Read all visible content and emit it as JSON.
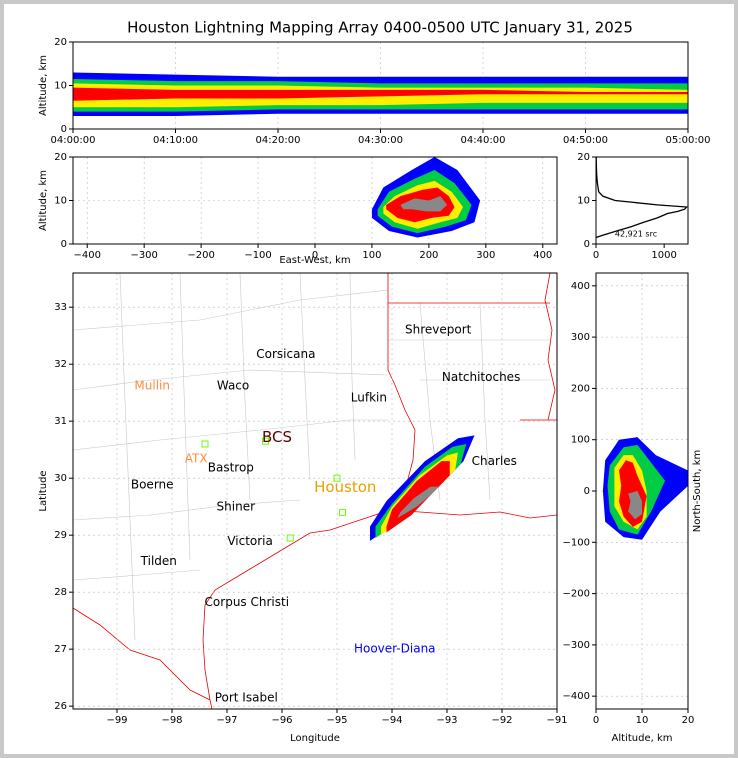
{
  "title": "Houston Lightning Mapping Array 0400-0500 UTC January 31, 2025",
  "chart_data": [
    {
      "type": "band",
      "ylabel": "Altitude, km",
      "xlim": [
        0,
        60
      ],
      "ylim": [
        0,
        20
      ],
      "grid": true,
      "xticks": [
        {
          "value": 0,
          "label": "04:00:00"
        },
        {
          "value": 10,
          "label": "04:10:00"
        },
        {
          "value": 20,
          "label": "04:20:00"
        },
        {
          "value": 30,
          "label": "04:30:00"
        },
        {
          "value": 40,
          "label": "04:40:00"
        },
        {
          "value": 50,
          "label": "04:50:00"
        },
        {
          "value": 60,
          "label": "05:00:00"
        }
      ],
      "yticks": [
        0,
        10,
        20
      ],
      "x": [
        0,
        10,
        20,
        30,
        40,
        50,
        60
      ],
      "series": [
        {
          "color": "#0000ff",
          "low": [
            3,
            3,
            3.5,
            3.5,
            3.5,
            3.5,
            3.5
          ],
          "high": [
            13,
            12.5,
            12,
            12,
            12,
            12,
            12
          ]
        },
        {
          "color": "#00cc44",
          "low": [
            4,
            4,
            4.5,
            4.5,
            4.5,
            4.5,
            4.5
          ],
          "high": [
            11.5,
            11,
            11,
            10.5,
            10.5,
            10.5,
            10.5
          ]
        },
        {
          "color": "#ffee00",
          "low": [
            5,
            5,
            5.5,
            5.5,
            6,
            6,
            6
          ],
          "high": [
            10.5,
            10,
            10,
            9.5,
            9.5,
            9.5,
            9
          ]
        },
        {
          "color": "#ff0000",
          "low": [
            6.5,
            7,
            7,
            7.5,
            8,
            8,
            8
          ],
          "high": [
            9.5,
            9,
            9,
            9,
            9,
            8.5,
            8.5
          ]
        }
      ]
    },
    {
      "type": "polygon",
      "xlabel": "East-West, km",
      "ylabel": "Altitude, km",
      "xlim": [
        -425,
        425
      ],
      "ylim": [
        0,
        20
      ],
      "grid": true,
      "xticks": [
        {
          "value": -400,
          "label": "−400"
        },
        {
          "value": -300,
          "label": "−300"
        },
        {
          "value": -200,
          "label": "−200"
        },
        {
          "value": -100,
          "label": "−100"
        },
        0,
        100,
        200,
        300,
        400
      ],
      "yticks": [
        0,
        10,
        20
      ],
      "series": [
        {
          "color": "#0000ff",
          "x": [
            100,
            120,
            170,
            210,
            250,
            290,
            280,
            240,
            180,
            130,
            100
          ],
          "y": [
            8,
            13,
            17,
            20,
            17,
            10,
            5,
            3,
            1.5,
            3,
            6
          ]
        },
        {
          "color": "#00cc44",
          "x": [
            110,
            130,
            175,
            210,
            245,
            275,
            265,
            230,
            180,
            135,
            110
          ],
          "y": [
            8,
            12,
            15,
            17,
            14,
            9,
            5.5,
            4,
            2.5,
            4,
            6.5
          ]
        },
        {
          "color": "#ffee00",
          "x": [
            120,
            140,
            180,
            210,
            240,
            260,
            250,
            220,
            180,
            140,
            120
          ],
          "y": [
            8.5,
            11,
            13.5,
            14.5,
            12,
            8.5,
            6,
            5,
            3.5,
            5,
            7
          ]
        },
        {
          "color": "#ff0000",
          "x": [
            125,
            150,
            190,
            215,
            235,
            245,
            235,
            205,
            175,
            145,
            125
          ],
          "y": [
            9,
            11,
            12.5,
            13,
            11,
            8.5,
            6.5,
            6,
            5,
            6,
            8
          ]
        },
        {
          "color": "#888888",
          "x": [
            150,
            175,
            200,
            220,
            232,
            220,
            195,
            170,
            155
          ],
          "y": [
            9,
            10.5,
            10,
            11,
            9,
            7.5,
            7.5,
            8,
            8
          ]
        }
      ]
    },
    {
      "type": "line",
      "xlim": [
        0,
        1350
      ],
      "ylim": [
        0,
        20
      ],
      "grid": false,
      "xticks": [
        0,
        1000
      ],
      "yticks": [
        0,
        10,
        20
      ],
      "annotation": "42,921 src",
      "color": "#000000",
      "x": [
        0,
        100,
        300,
        520,
        700,
        900,
        1050,
        1200,
        1300,
        1330,
        900,
        280,
        100,
        40,
        20,
        10,
        5,
        3
      ],
      "y": [
        1.5,
        2,
        3,
        4,
        5,
        6,
        7,
        7.5,
        8,
        8.5,
        9,
        10,
        11,
        12,
        14,
        16,
        18,
        20
      ]
    },
    {
      "type": "polygon",
      "xlabel": "Longitude",
      "ylabel": "Latitude",
      "xlim": [
        -99.8,
        -91
      ],
      "ylim": [
        25.95,
        33.6
      ],
      "grid": true,
      "xticks": [
        {
          "value": -99,
          "label": "−99"
        },
        {
          "value": -98,
          "label": "−98"
        },
        {
          "value": -97,
          "label": "−97"
        },
        {
          "value": -96,
          "label": "−96"
        },
        {
          "value": -95,
          "label": "−95"
        },
        {
          "value": -94,
          "label": "−94"
        },
        {
          "value": -93,
          "label": "−93"
        },
        {
          "value": -92,
          "label": "−92"
        },
        {
          "value": -91,
          "label": "−91"
        }
      ],
      "yticks": [
        26,
        27,
        28,
        29,
        30,
        31,
        32,
        33
      ],
      "series": [
        {
          "color": "#0000ff",
          "x": [
            -94.4,
            -93.8,
            -93.2,
            -92.7,
            -92.5,
            -92.8,
            -93.4,
            -94.1,
            -94.4
          ],
          "y": [
            28.9,
            29.3,
            29.8,
            30.3,
            30.75,
            30.7,
            30.3,
            29.6,
            29.15
          ]
        },
        {
          "color": "#00cc44",
          "x": [
            -94.3,
            -93.7,
            -93.2,
            -92.75,
            -92.65,
            -92.9,
            -93.4,
            -94.0,
            -94.3
          ],
          "y": [
            28.95,
            29.35,
            29.8,
            30.25,
            30.6,
            30.55,
            30.2,
            29.55,
            29.15
          ]
        },
        {
          "color": "#ffee00",
          "x": [
            -94.2,
            -93.7,
            -93.25,
            -92.85,
            -92.8,
            -93.0,
            -93.5,
            -94.0,
            -94.2
          ],
          "y": [
            29.0,
            29.35,
            29.75,
            30.15,
            30.45,
            30.4,
            30.05,
            29.5,
            29.15
          ]
        },
        {
          "color": "#ff0000",
          "x": [
            -94.1,
            -93.65,
            -93.3,
            -92.95,
            -92.95,
            -93.1,
            -93.55,
            -94.0,
            -94.1
          ],
          "y": [
            29.05,
            29.35,
            29.7,
            30.05,
            30.3,
            30.3,
            29.95,
            29.45,
            29.15
          ]
        },
        {
          "color": "#888888",
          "x": [
            -93.9,
            -93.55,
            -93.3,
            -93.15,
            -93.3,
            -93.6,
            -93.85
          ],
          "y": [
            29.3,
            29.5,
            29.7,
            29.85,
            29.85,
            29.65,
            29.4
          ]
        }
      ],
      "stations": {
        "color": "#66ff00",
        "lon": [
          -97.4,
          -96.3,
          -95.85,
          -95,
          -94.9
        ],
        "lat": [
          30.6,
          30.65,
          28.95,
          30.0,
          29.4
        ]
      },
      "labels": [
        {
          "text": "Shreveport",
          "lon": -93.16,
          "lat": 32.6,
          "color": "#000000"
        },
        {
          "text": "Corsicana",
          "lon": -95.93,
          "lat": 32.17,
          "color": "#000000"
        },
        {
          "text": "Mullin",
          "lon": -98.36,
          "lat": 31.62,
          "color": "#ff8c40"
        },
        {
          "text": "Waco",
          "lon": -96.89,
          "lat": 31.62,
          "color": "#000000"
        },
        {
          "text": "Natchitoches",
          "lon": -92.38,
          "lat": 31.77,
          "color": "#000000"
        },
        {
          "text": "Lufkin",
          "lon": -94.42,
          "lat": 31.41,
          "color": "#000000"
        },
        {
          "text": "BCS",
          "lon": -96.09,
          "lat": 30.71,
          "color": "#5a0000"
        },
        {
          "text": "ATX",
          "lon": -97.56,
          "lat": 30.34,
          "color": "#ff8c40"
        },
        {
          "text": "Bastrop",
          "lon": -96.93,
          "lat": 30.18,
          "color": "#000000"
        },
        {
          "text": "Charles",
          "lon": -92.14,
          "lat": 30.29,
          "color": "#000000"
        },
        {
          "text": "Boerne",
          "lon": -98.36,
          "lat": 29.88,
          "color": "#000000"
        },
        {
          "text": "Houston",
          "lon": -94.85,
          "lat": 29.84,
          "color": "#e8a000"
        },
        {
          "text": "Shiner",
          "lon": -96.84,
          "lat": 29.49,
          "color": "#000000"
        },
        {
          "text": "Victoria",
          "lon": -96.58,
          "lat": 28.89,
          "color": "#000000"
        },
        {
          "text": "Tilden",
          "lon": -98.24,
          "lat": 28.54,
          "color": "#000000"
        },
        {
          "text": "Corpus Christi",
          "lon": -96.64,
          "lat": 27.82,
          "color": "#000000"
        },
        {
          "text": "Hoover-Diana",
          "lon": -93.95,
          "lat": 27.0,
          "color": "#0000ff"
        },
        {
          "text": "Port Isabel",
          "lon": -96.65,
          "lat": 26.14,
          "color": "#000000"
        }
      ]
    },
    {
      "type": "polygon",
      "xlabel": "Altitude, km",
      "ylabel": "North-South, km",
      "xlim": [
        0,
        20
      ],
      "ylim": [
        -425,
        425
      ],
      "grid": true,
      "xticks": [
        0,
        10,
        20
      ],
      "yticks": [
        {
          "value": -400,
          "label": "−400"
        },
        {
          "value": -300,
          "label": "−300"
        },
        {
          "value": -200,
          "label": "−200"
        },
        {
          "value": -100,
          "label": "−100"
        },
        0,
        100,
        200,
        300,
        400
      ],
      "series": [
        {
          "color": "#0000ff",
          "x": [
            2,
            5,
            9,
            13,
            20,
            20,
            14,
            10,
            6,
            2,
            1.5
          ],
          "y": [
            60,
            100,
            105,
            70,
            40,
            10,
            -40,
            -95,
            -90,
            -60,
            0
          ]
        },
        {
          "color": "#00cc44",
          "x": [
            3,
            6,
            9,
            12,
            15,
            12,
            9,
            5,
            3,
            2.5
          ],
          "y": [
            50,
            85,
            90,
            55,
            20,
            -40,
            -85,
            -75,
            -40,
            10
          ]
        },
        {
          "color": "#ffee00",
          "x": [
            4,
            6,
            8,
            10,
            11,
            11,
            9,
            6,
            4
          ],
          "y": [
            45,
            70,
            70,
            40,
            0,
            -50,
            -75,
            -60,
            -30
          ]
        },
        {
          "color": "#ff0000",
          "x": [
            5,
            6.5,
            8,
            9,
            11,
            10,
            8,
            6,
            5,
            5.5
          ],
          "y": [
            40,
            60,
            55,
            30,
            -10,
            -60,
            -70,
            -50,
            -20,
            10
          ]
        },
        {
          "color": "#888888",
          "x": [
            7,
            9,
            10,
            10,
            8.5,
            7,
            7.5
          ],
          "y": [
            -5,
            0,
            -20,
            -45,
            -55,
            -40,
            -20
          ]
        }
      ]
    }
  ]
}
